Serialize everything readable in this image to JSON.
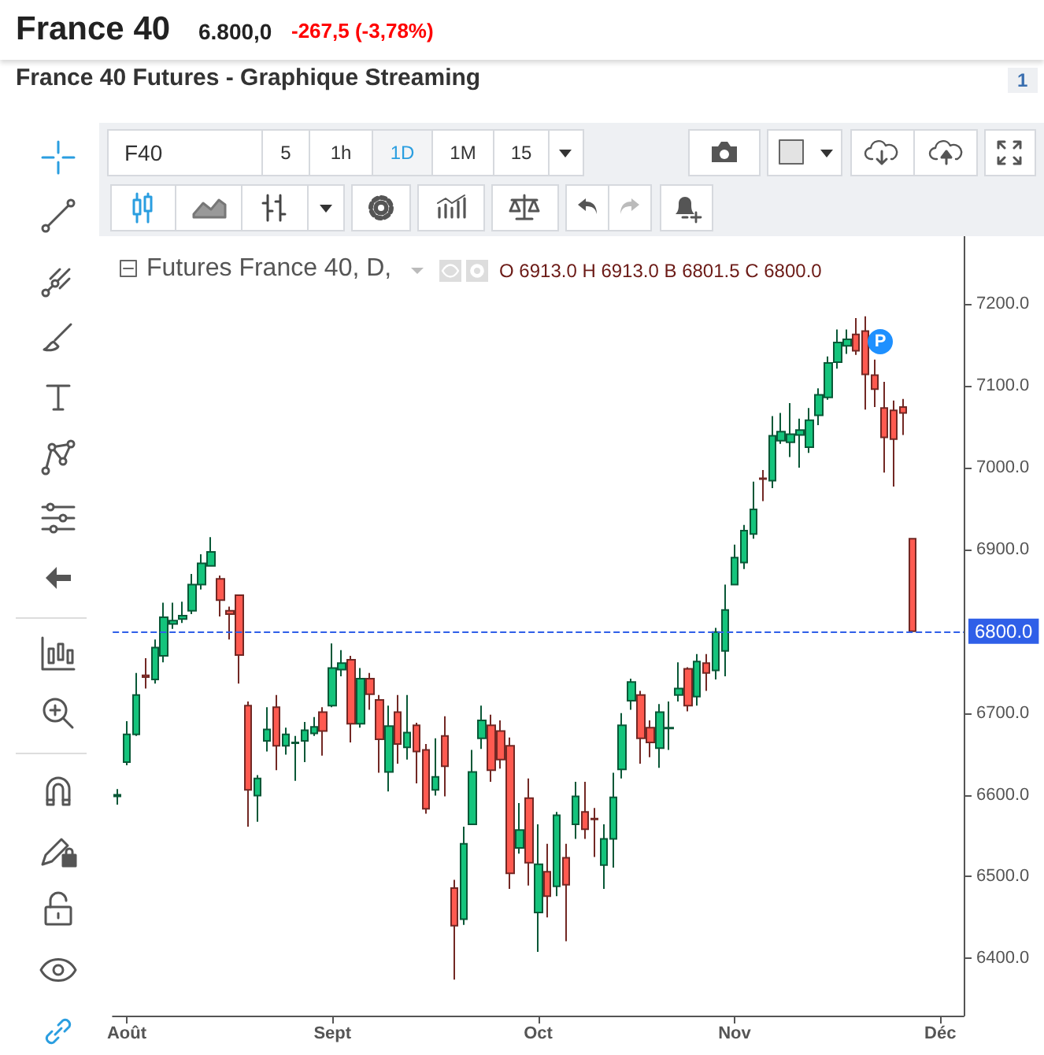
{
  "chart_data": {
    "type": "candlestick",
    "title": "France 40",
    "annotations": [
      "6.800,0",
      "-267,5 (-3,78%)",
      "France 40 Futures - Graphique Streaming",
      "Futures France 40, D,",
      "O 6913.0 H 6913.0 B 6801.5 C 6800.0",
      "F40",
      "5",
      "1h",
      "1D",
      "1M",
      "15",
      "1",
      "P"
    ],
    "categories": [
      null,
      "Août",
      null,
      null,
      null,
      null,
      null,
      null,
      null,
      null,
      null,
      null,
      null,
      null,
      null,
      null,
      null,
      null,
      null,
      null,
      null,
      null,
      null,
      "Sept",
      null,
      null,
      null,
      null,
      null,
      null,
      null,
      null,
      null,
      null,
      null,
      null,
      null,
      null,
      null,
      null,
      null,
      null,
      null,
      null,
      null,
      "Oct",
      null,
      null,
      null,
      null,
      null,
      null,
      null,
      null,
      null,
      null,
      null,
      null,
      null,
      null,
      null,
      null,
      null,
      null,
      null,
      null,
      "Nov",
      null,
      null,
      null,
      null,
      null,
      null,
      null,
      null,
      null,
      null,
      null,
      null,
      null,
      null,
      null,
      null,
      null,
      null,
      null,
      null,
      null,
      "Déc",
      null,
      null
    ],
    "ohlc": [
      [
        6598,
        6607,
        6588,
        6600
      ],
      [
        6640,
        6690,
        6636,
        6674
      ],
      [
        6674,
        6749,
        6672,
        6722
      ],
      [
        6746,
        6767,
        6730,
        6744
      ],
      [
        6741,
        6790,
        6736,
        6780
      ],
      [
        6770,
        6835,
        6762,
        6817
      ],
      [
        6809,
        6835,
        6803,
        6813
      ],
      [
        6815,
        6836,
        6810,
        6819
      ],
      [
        6825,
        6870,
        6821,
        6857
      ],
      [
        6857,
        6894,
        6851,
        6883
      ],
      [
        6880,
        6915,
        6880,
        6897
      ],
      [
        6864,
        6868,
        6818,
        6838
      ],
      [
        6825,
        6830,
        6790,
        6821
      ],
      [
        6844,
        6844,
        6736,
        6771
      ],
      [
        6709,
        6714,
        6561,
        6606
      ],
      [
        6599,
        6624,
        6567,
        6620
      ],
      [
        6666,
        6707,
        6653,
        6680
      ],
      [
        6707,
        6722,
        6630,
        6660
      ],
      [
        6660,
        6682,
        6649,
        6674
      ],
      [
        6663,
        6672,
        6617,
        6664
      ],
      [
        6666,
        6689,
        6640,
        6679
      ],
      [
        6675,
        6695,
        6672,
        6683
      ],
      [
        6701,
        6707,
        6648,
        6678
      ],
      [
        6709,
        6785,
        6707,
        6755
      ],
      [
        6753,
        6777,
        6745,
        6761
      ],
      [
        6765,
        6770,
        6664,
        6687
      ],
      [
        6687,
        6755,
        6682,
        6742
      ],
      [
        6742,
        6749,
        6704,
        6723
      ],
      [
        6716,
        6722,
        6627,
        6668
      ],
      [
        6628,
        6709,
        6604,
        6684
      ],
      [
        6701,
        6722,
        6638,
        6662
      ],
      [
        6658,
        6722,
        6643,
        6676
      ],
      [
        6685,
        6688,
        6614,
        6653
      ],
      [
        6655,
        6662,
        6577,
        6583
      ],
      [
        6606,
        6669,
        6599,
        6622
      ],
      [
        6672,
        6696,
        6598,
        6635
      ],
      [
        6486,
        6496,
        6374,
        6440
      ],
      [
        6448,
        6561,
        6441,
        6540
      ],
      [
        6564,
        6655,
        6564,
        6628
      ],
      [
        6669,
        6709,
        6656,
        6691
      ],
      [
        6685,
        6698,
        6616,
        6630
      ],
      [
        6678,
        6691,
        6632,
        6643
      ],
      [
        6660,
        6670,
        6485,
        6504
      ],
      [
        6535,
        6590,
        6528,
        6557
      ],
      [
        6596,
        6620,
        6489,
        6517
      ],
      [
        6456,
        6564,
        6408,
        6515
      ],
      [
        6506,
        6540,
        6450,
        6476
      ],
      [
        6488,
        6579,
        6476,
        6575
      ],
      [
        6523,
        6540,
        6421,
        6490
      ],
      [
        6564,
        6616,
        6546,
        6598
      ],
      [
        6579,
        6616,
        6546,
        6558
      ],
      [
        6571,
        6584,
        6524,
        6570
      ],
      [
        6514,
        6564,
        6485,
        6546
      ],
      [
        6546,
        6627,
        6511,
        6597
      ],
      [
        6631,
        6700,
        6620,
        6685
      ],
      [
        6715,
        6742,
        6704,
        6738
      ],
      [
        6722,
        6727,
        6638,
        6669
      ],
      [
        6682,
        6691,
        6646,
        6664
      ],
      [
        6657,
        6711,
        6633,
        6701
      ],
      [
        6681,
        6714,
        6655,
        6682
      ],
      [
        6722,
        6762,
        6714,
        6730
      ],
      [
        6754,
        6756,
        6702,
        6709
      ],
      [
        6720,
        6772,
        6709,
        6763
      ],
      [
        6761,
        6772,
        6727,
        6749
      ],
      [
        6752,
        6804,
        6741,
        6799
      ],
      [
        6776,
        6857,
        6745,
        6826
      ],
      [
        6857,
        6906,
        6857,
        6890
      ],
      [
        6884,
        6930,
        6876,
        6923
      ],
      [
        6919,
        6983,
        6913,
        6949
      ],
      [
        6987,
        6997,
        6959,
        6986
      ],
      [
        6984,
        7063,
        6975,
        7039
      ],
      [
        7033,
        7067,
        7029,
        7044
      ],
      [
        7031,
        7079,
        7013,
        7041
      ],
      [
        7040,
        7060,
        7000,
        7046
      ],
      [
        7025,
        7073,
        7018,
        7058
      ],
      [
        7064,
        7097,
        7052,
        7089
      ],
      [
        7086,
        7136,
        7083,
        7128
      ],
      [
        7129,
        7169,
        7121,
        7153
      ],
      [
        7149,
        7169,
        7139,
        7157
      ],
      [
        7163,
        7183,
        7138,
        7143
      ],
      [
        7167,
        7185,
        7071,
        7114
      ],
      [
        7113,
        7132,
        7074,
        7096
      ],
      [
        7073,
        7105,
        6994,
        7037
      ],
      [
        7070,
        7082,
        6977,
        7035
      ],
      [
        7074,
        7084,
        7040,
        7067
      ],
      [
        6913,
        6913,
        6800,
        6800
      ],
      null,
      null,
      null,
      null,
      null
    ],
    "colors": [
      "#14c47c",
      "#14c47c",
      "#14c47c",
      "#ff5a50",
      "#14c47c",
      "#14c47c",
      "#14c47c",
      "#14c47c",
      "#14c47c",
      "#14c47c",
      "#14c47c",
      "#ff5a50",
      "#ff5a50",
      "#ff5a50",
      "#ff5a50",
      "#14c47c",
      "#14c47c",
      "#ff5a50",
      "#14c47c",
      "#14c47c",
      "#14c47c",
      "#14c47c",
      "#ff5a50",
      "#14c47c",
      "#14c47c",
      "#ff5a50",
      "#14c47c",
      "#ff5a50",
      "#ff5a50",
      "#14c47c",
      "#ff5a50",
      "#14c47c",
      "#ff5a50",
      "#ff5a50",
      "#14c47c",
      "#ff5a50",
      "#ff5a50",
      "#14c47c",
      "#14c47c",
      "#14c47c",
      "#ff5a50",
      "#ff5a50",
      "#ff5a50",
      "#14c47c",
      "#ff5a50",
      "#14c47c",
      "#ff5a50",
      "#14c47c",
      "#ff5a50",
      "#14c47c",
      "#ff5a50",
      "#ff5a50",
      "#14c47c",
      "#14c47c",
      "#14c47c",
      "#14c47c",
      "#ff5a50",
      "#ff5a50",
      "#14c47c",
      "#14c47c",
      "#14c47c",
      "#ff5a50",
      "#14c47c",
      "#ff5a50",
      "#14c47c",
      "#14c47c",
      "#14c47c",
      "#14c47c",
      "#14c47c",
      "#ff5a50",
      "#14c47c",
      "#14c47c",
      "#14c47c",
      "#14c47c",
      "#14c47c",
      "#14c47c",
      "#14c47c",
      "#14c47c",
      "#14c47c",
      "#ff5a50",
      "#ff5a50",
      "#ff5a50",
      "#ff5a50",
      "#ff5a50",
      "#ff5a50",
      "#ff5a50",
      null,
      null,
      null,
      null,
      null
    ],
    "ylim": [
      6330,
      7283
    ],
    "yticks": [
      {
        "value": 6400,
        "label": "6400.0"
      },
      {
        "value": 6500,
        "label": "6500.0"
      },
      {
        "value": 6600,
        "label": "6600.0"
      },
      {
        "value": 6700,
        "label": "6700.0"
      },
      {
        "value": 6900,
        "label": "6900.0"
      },
      {
        "value": 7000,
        "label": "7000.0"
      },
      {
        "value": 7100,
        "label": "7100.0"
      },
      {
        "value": 7200,
        "label": "7200.0"
      }
    ],
    "ref_lines": [
      {
        "axis": "y",
        "value": 6800,
        "label": "6800.0",
        "color": "#2f5fe8",
        "line_style": "dashed"
      }
    ],
    "grid": false
  }
}
